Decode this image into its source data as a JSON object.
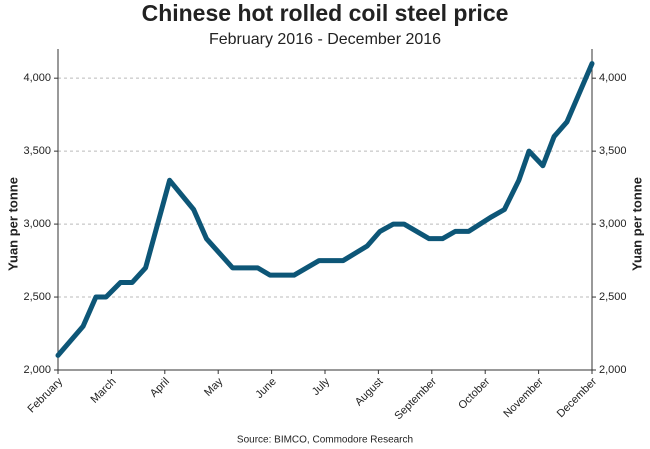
{
  "chart_data": {
    "type": "line",
    "title": "Chinese hot rolled coil steel price",
    "subtitle": "February 2016 - December 2016",
    "ylabel": "Yuan per tonne",
    "y2label": "Yuan per tonne",
    "source": "Source: BIMCO, Commodore Research",
    "x": [
      0,
      0.47,
      0.71,
      0.9,
      1.17,
      1.39,
      1.64,
      2.09,
      2.54,
      2.78,
      3.27,
      3.74,
      3.97,
      4.42,
      4.89,
      5.34,
      5.79,
      6.03,
      6.28,
      6.48,
      6.95,
      7.2,
      7.44,
      7.69,
      8.12,
      8.36,
      8.63,
      8.82,
      9.08,
      9.29,
      9.53,
      10
    ],
    "series": [
      {
        "name": "Hot rolled coil steel price",
        "color": "#0d5677",
        "values": [
          2100,
          2300,
          2500,
          2500,
          2600,
          2600,
          2700,
          3300,
          3100,
          2900,
          2700,
          2700,
          2650,
          2650,
          2750,
          2750,
          2850,
          2950,
          3000,
          3000,
          2900,
          2900,
          2950,
          2950,
          3050,
          3100,
          3300,
          3500,
          3400,
          3600,
          3700,
          4100
        ]
      }
    ],
    "xlim": [
      0,
      10
    ],
    "xticks": [
      {
        "value": 0,
        "label": "February"
      },
      {
        "value": 1,
        "label": "March"
      },
      {
        "value": 2,
        "label": "April"
      },
      {
        "value": 3,
        "label": "May"
      },
      {
        "value": 4,
        "label": "June"
      },
      {
        "value": 5,
        "label": "July"
      },
      {
        "value": 6,
        "label": "August"
      },
      {
        "value": 7,
        "label": "September"
      },
      {
        "value": 8,
        "label": "October"
      },
      {
        "value": 9,
        "label": "November"
      },
      {
        "value": 10,
        "label": "December"
      }
    ],
    "ylim": [
      2000,
      4200
    ],
    "yticks": [
      {
        "value": 2000,
        "label": "2,000"
      },
      {
        "value": 2500,
        "label": "2,500"
      },
      {
        "value": 3000,
        "label": "3,000"
      },
      {
        "value": 3500,
        "label": "3,500"
      },
      {
        "value": 4000,
        "label": "4,000"
      }
    ],
    "y2lim": [
      2000,
      4200
    ],
    "y2ticks": [
      {
        "value": 2000,
        "label": "2,000"
      },
      {
        "value": 2500,
        "label": "2,500"
      },
      {
        "value": 3000,
        "label": "3,000"
      },
      {
        "value": 3500,
        "label": "3,500"
      },
      {
        "value": 4000,
        "label": "4,000"
      }
    ],
    "grid": true
  }
}
